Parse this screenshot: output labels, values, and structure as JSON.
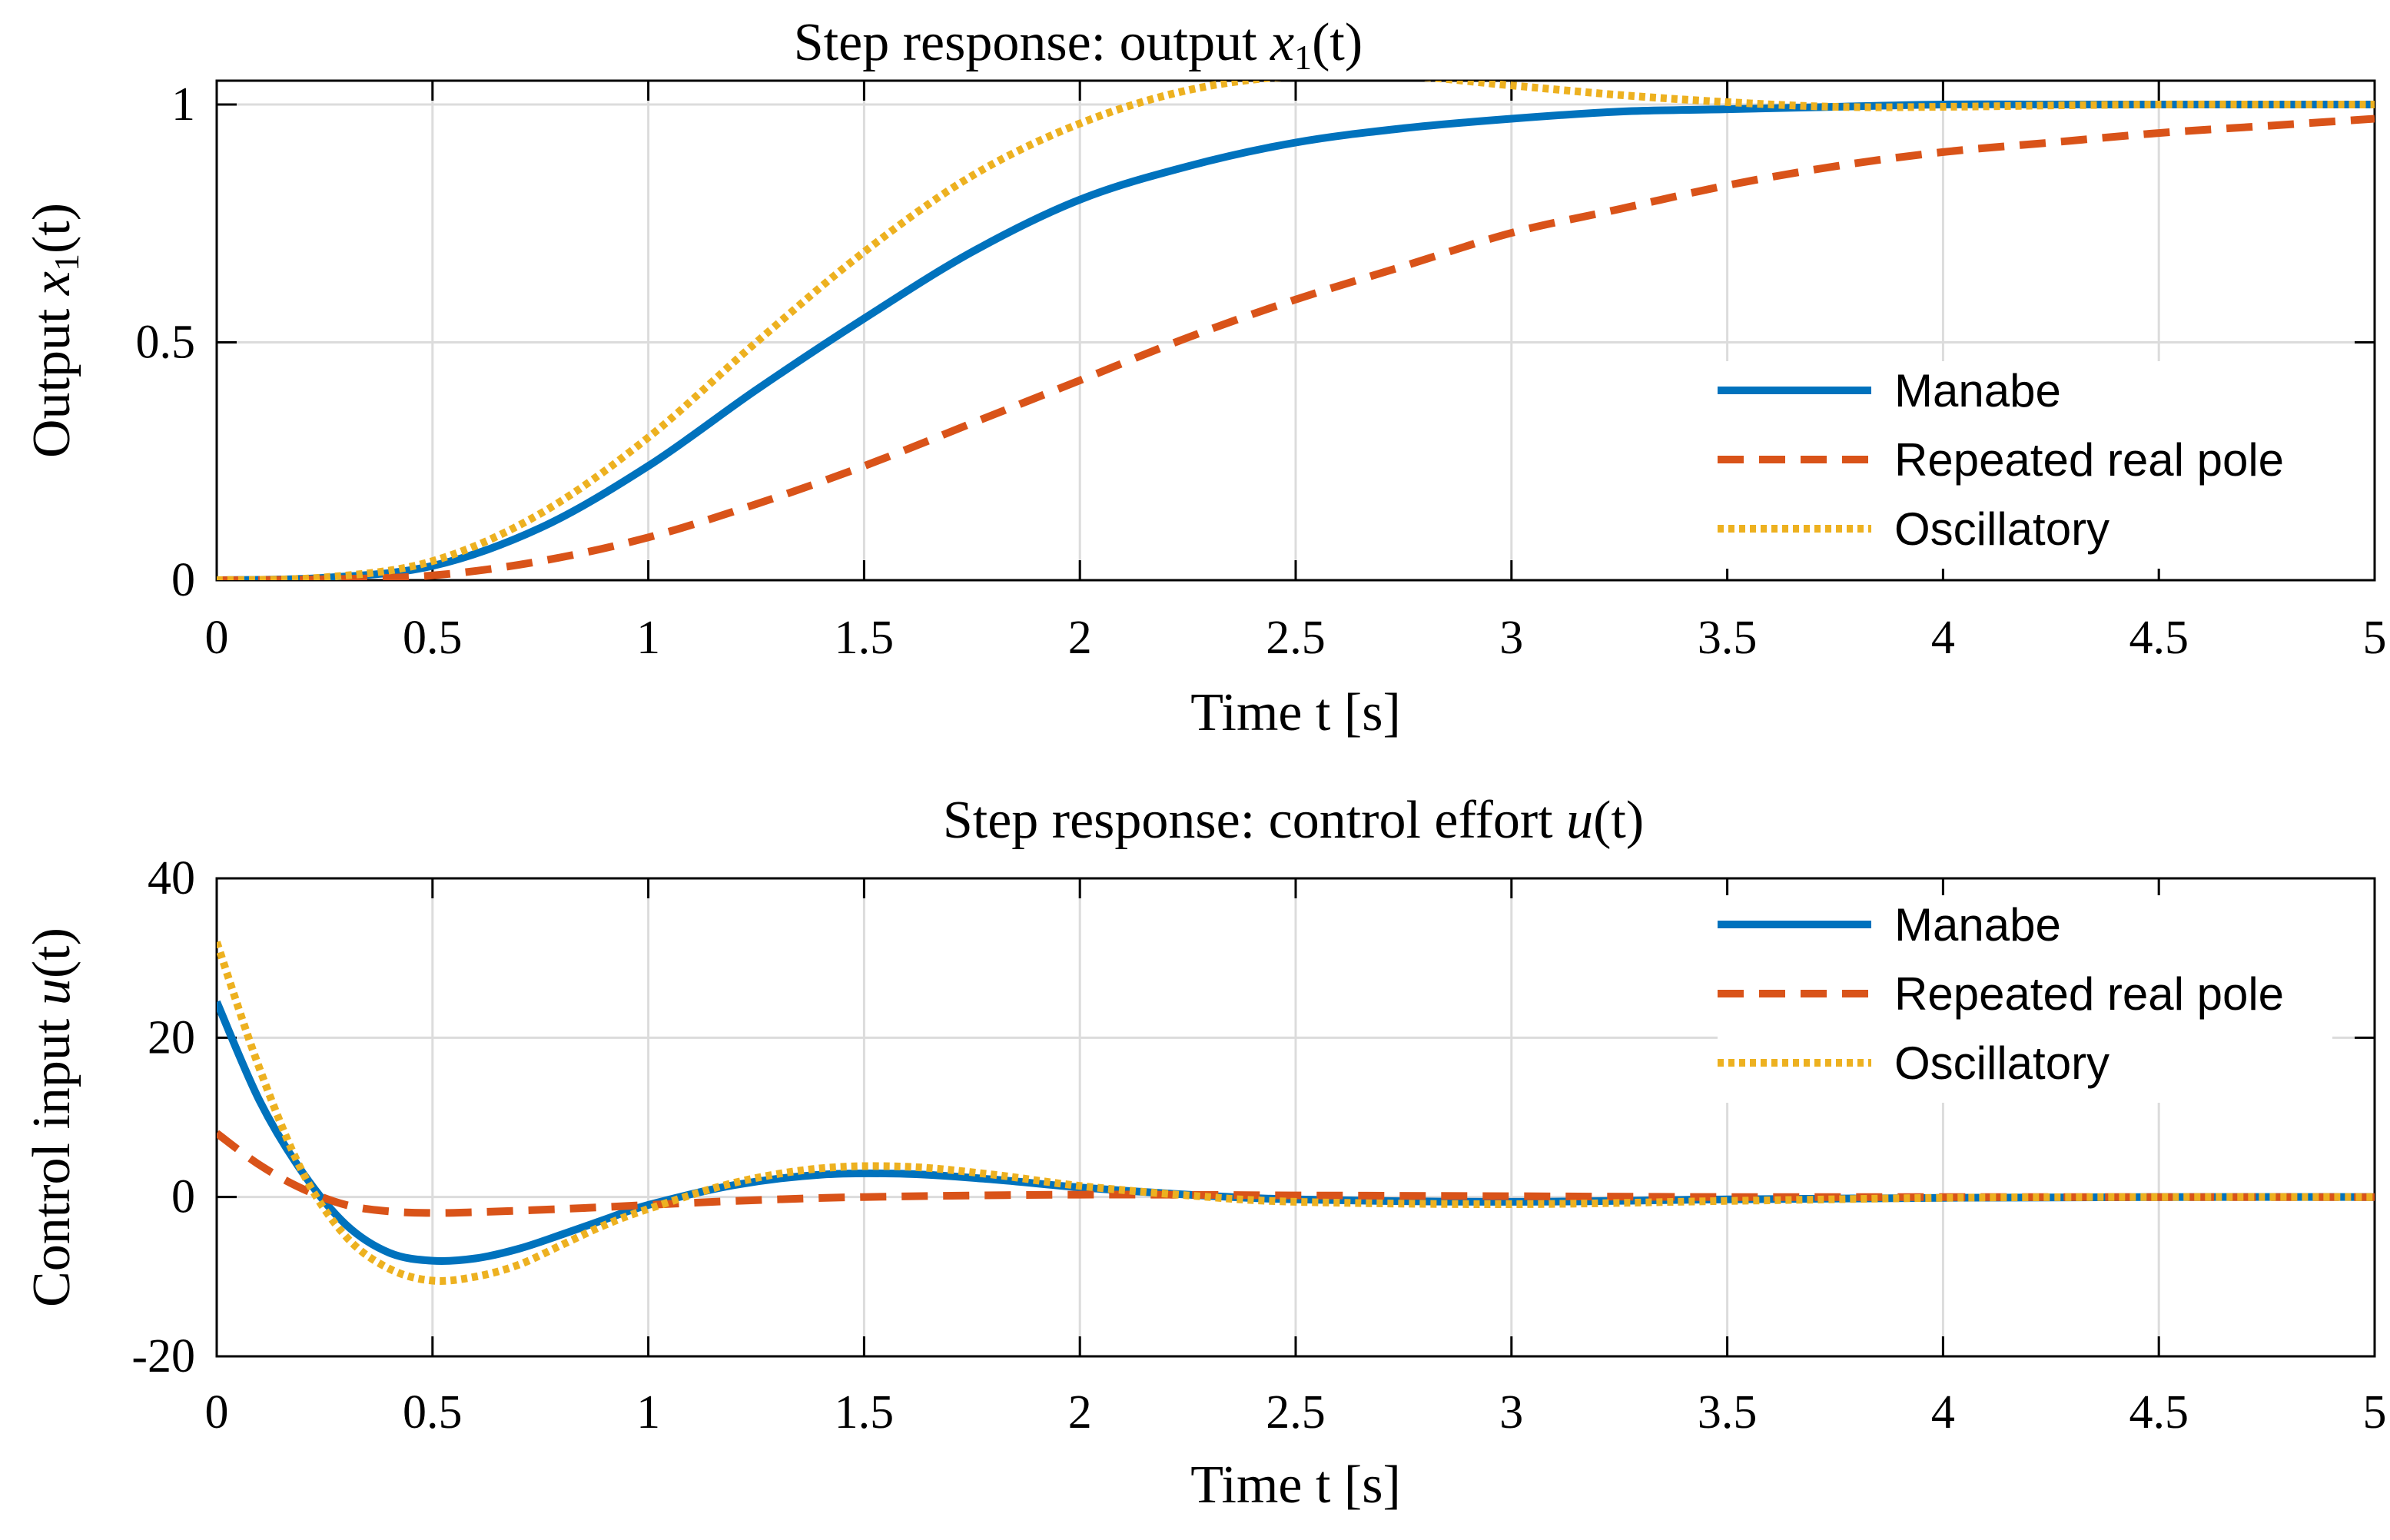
{
  "colors": {
    "manabe": "#0072BD",
    "repeated": "#D95319",
    "oscillatory": "#EDB120"
  },
  "chart_data": [
    {
      "type": "line",
      "title_prefix": "Step response: output ",
      "title_math": "x",
      "title_sub": "1",
      "title_suffix": "(t)",
      "xlabel": "Time t [s]",
      "ylabel_prefix": "Output ",
      "ylabel_math": "x",
      "ylabel_sub": "1",
      "ylabel_suffix": "(t)",
      "xlim": [
        0,
        5
      ],
      "ylim": [
        0,
        1.05
      ],
      "xticks": [
        "0",
        "0.5",
        "1",
        "1.5",
        "2",
        "2.5",
        "3",
        "3.5",
        "4",
        "4.5",
        "5"
      ],
      "yticks": [
        "0",
        "0.5",
        "1"
      ],
      "yticks_values": [
        0,
        0.5,
        1
      ],
      "grid": true,
      "legend_position": "right",
      "series": [
        {
          "name": "Manabe",
          "style": "solid",
          "x": [
            0,
            0.25,
            0.5,
            0.75,
            1,
            1.25,
            1.5,
            1.75,
            2,
            2.25,
            2.5,
            2.75,
            3,
            3.25,
            3.5,
            3.75,
            4,
            4.25,
            4.5,
            4.75,
            5
          ],
          "y": [
            0,
            0.005,
            0.03,
            0.11,
            0.24,
            0.4,
            0.55,
            0.69,
            0.8,
            0.87,
            0.92,
            0.95,
            0.97,
            0.985,
            0.99,
            0.995,
            1.0,
            1.0,
            1.0,
            1.0,
            1.0
          ]
        },
        {
          "name": "Repeated real pole",
          "style": "dashed",
          "x": [
            0,
            0.25,
            0.5,
            0.75,
            1,
            1.25,
            1.5,
            1.75,
            2,
            2.25,
            2.5,
            2.75,
            3,
            3.25,
            3.5,
            3.75,
            4,
            4.25,
            4.5,
            4.75,
            5
          ],
          "y": [
            0,
            0.002,
            0.01,
            0.04,
            0.09,
            0.16,
            0.24,
            0.33,
            0.42,
            0.51,
            0.59,
            0.66,
            0.73,
            0.78,
            0.83,
            0.87,
            0.9,
            0.92,
            0.94,
            0.955,
            0.97
          ]
        },
        {
          "name": "Oscillatory",
          "style": "dotted",
          "x": [
            0,
            0.25,
            0.5,
            0.75,
            1,
            1.25,
            1.5,
            1.75,
            2,
            2.25,
            2.5,
            2.75,
            3,
            3.25,
            3.5,
            3.75,
            4,
            4.25,
            4.5,
            4.75,
            5
          ],
          "y": [
            0,
            0.006,
            0.04,
            0.14,
            0.3,
            0.5,
            0.69,
            0.85,
            0.96,
            1.03,
            1.06,
            1.06,
            1.04,
            1.02,
            1.005,
            0.995,
            0.995,
            0.998,
            1.0,
            1.0,
            1.0
          ]
        }
      ]
    },
    {
      "type": "line",
      "title_prefix": "Step response: control effort ",
      "title_math": "u",
      "title_sub": "",
      "title_suffix": "(t)",
      "xlabel": "Time t [s]",
      "ylabel_prefix": "Control input ",
      "ylabel_math": "u",
      "ylabel_sub": "",
      "ylabel_suffix": "(t)",
      "xlim": [
        0,
        5
      ],
      "ylim": [
        -20,
        40
      ],
      "xticks": [
        "0",
        "0.5",
        "1",
        "1.5",
        "2",
        "2.5",
        "3",
        "3.5",
        "4",
        "4.5",
        "5"
      ],
      "yticks": [
        "-20",
        "0",
        "20",
        "40"
      ],
      "yticks_values": [
        -20,
        0,
        20,
        40
      ],
      "grid": true,
      "legend_position": "top-right",
      "series": [
        {
          "name": "Manabe",
          "style": "solid",
          "x": [
            0,
            0.1,
            0.2,
            0.3,
            0.4,
            0.5,
            0.6,
            0.7,
            0.8,
            0.9,
            1,
            1.2,
            1.4,
            1.6,
            1.8,
            2,
            2.25,
            2.5,
            3,
            3.5,
            4,
            4.5,
            5
          ],
          "y": [
            24.5,
            12,
            3,
            -3.5,
            -7,
            -8,
            -7.7,
            -6.5,
            -4.7,
            -2.8,
            -1,
            1.5,
            2.8,
            2.9,
            2.2,
            1.2,
            0.3,
            -0.3,
            -0.6,
            -0.3,
            -0.1,
            0,
            0
          ]
        },
        {
          "name": "Repeated real pole",
          "style": "dashed",
          "x": [
            0,
            0.1,
            0.2,
            0.3,
            0.4,
            0.5,
            0.6,
            0.8,
            1,
            1.2,
            1.5,
            2,
            2.5,
            3,
            3.5,
            4,
            4.5,
            5
          ],
          "y": [
            8,
            4,
            1,
            -1,
            -1.8,
            -2,
            -1.9,
            -1.5,
            -1,
            -0.5,
            0,
            0.3,
            0.2,
            0.1,
            0,
            0,
            0,
            0
          ]
        },
        {
          "name": "Oscillatory",
          "style": "dotted",
          "x": [
            0,
            0.1,
            0.2,
            0.3,
            0.4,
            0.5,
            0.6,
            0.7,
            0.8,
            0.9,
            1,
            1.2,
            1.4,
            1.6,
            1.8,
            2,
            2.25,
            2.5,
            3,
            3.5,
            4,
            4.5,
            5
          ],
          "y": [
            32,
            16,
            3,
            -5,
            -9,
            -10.5,
            -10,
            -8.5,
            -6,
            -3.5,
            -1.5,
            1.8,
            3.6,
            3.8,
            2.8,
            1.4,
            0.2,
            -0.6,
            -0.9,
            -0.5,
            -0.1,
            0,
            0
          ]
        }
      ]
    }
  ]
}
